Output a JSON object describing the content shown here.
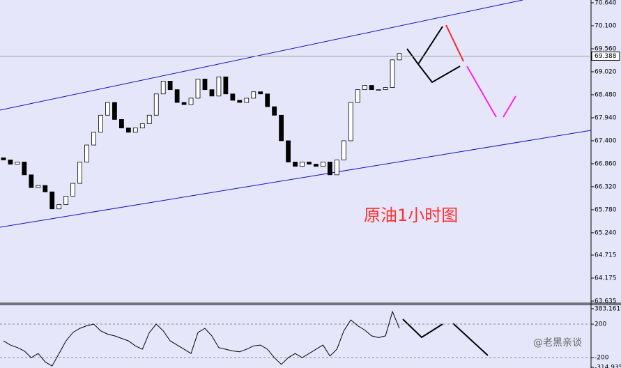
{
  "chart_data": [
    {
      "type": "candlestick",
      "annotation": "原油1小时图",
      "x": [
        null,
        null,
        null,
        null,
        null,
        null,
        null,
        null,
        null,
        null,
        null,
        null,
        null,
        null,
        null,
        null,
        null,
        null,
        null,
        null,
        null,
        null,
        null,
        null,
        null,
        null,
        null,
        null,
        null,
        null,
        null,
        null,
        null,
        null,
        null,
        null,
        null,
        null,
        null,
        null,
        null,
        null,
        null,
        null,
        null,
        null,
        null,
        null,
        null,
        null,
        null,
        null,
        null,
        null,
        null,
        null,
        null,
        null
      ],
      "open": [
        67.0,
        66.95,
        66.85,
        66.9,
        66.6,
        66.3,
        66.35,
        66.2,
        65.8,
        65.9,
        66.1,
        66.4,
        66.9,
        67.3,
        67.6,
        68.0,
        68.3,
        67.9,
        67.7,
        67.6,
        67.7,
        67.8,
        68.0,
        68.5,
        68.8,
        68.6,
        68.3,
        68.25,
        68.4,
        68.85,
        68.6,
        68.45,
        68.9,
        68.5,
        68.35,
        68.3,
        68.4,
        68.55,
        68.5,
        68.2,
        68.0,
        67.4,
        66.9,
        66.8,
        66.9,
        66.85,
        66.8,
        66.9,
        66.6,
        66.95,
        67.4,
        68.3,
        68.6,
        68.7,
        68.6,
        68.6,
        68.65,
        69.3
      ],
      "close": [
        66.95,
        66.85,
        66.9,
        66.6,
        66.3,
        66.35,
        66.2,
        65.8,
        65.9,
        66.1,
        66.4,
        66.9,
        67.3,
        67.6,
        68.0,
        68.3,
        67.9,
        67.7,
        67.6,
        67.7,
        67.8,
        68.0,
        68.5,
        68.8,
        68.6,
        68.3,
        68.25,
        68.4,
        68.85,
        68.6,
        68.45,
        68.9,
        68.5,
        68.35,
        68.3,
        68.4,
        68.55,
        68.5,
        68.2,
        68.0,
        67.4,
        66.9,
        66.8,
        66.9,
        66.85,
        66.8,
        66.9,
        66.6,
        66.95,
        67.4,
        68.3,
        68.6,
        68.7,
        68.6,
        68.6,
        68.65,
        69.3,
        69.45
      ],
      "up_color": "#ffffff",
      "down_color": "#000000",
      "last_price": 69.388,
      "ylim": [
        63.635,
        70.64
      ],
      "yticks": [
        {
          "value": 70.64,
          "label": "70.640"
        },
        {
          "value": 70.1,
          "label": "70.100"
        },
        {
          "value": 69.56,
          "label": "69.560"
        },
        {
          "value": 69.02,
          "label": "69.020"
        },
        {
          "value": 68.48,
          "label": "68.480"
        },
        {
          "value": 67.94,
          "label": "67.940"
        },
        {
          "value": 67.4,
          "label": "67.400"
        },
        {
          "value": 66.86,
          "label": "66.860"
        },
        {
          "value": 66.32,
          "label": "66.320"
        },
        {
          "value": 65.78,
          "label": "65.780"
        },
        {
          "value": 65.24,
          "label": "65.240"
        },
        64.715,
        64.175,
        63.635
      ]
    },
    {
      "type": "line",
      "watermark": "@老黑亲谈",
      "values": [
        0,
        -50,
        -80,
        -120,
        -200,
        -150,
        -250,
        -300,
        -150,
        0,
        100,
        150,
        180,
        200,
        120,
        80,
        60,
        30,
        0,
        -60,
        -100,
        100,
        200,
        120,
        0,
        -50,
        -100,
        -150,
        100,
        150,
        60,
        -80,
        -100,
        -120,
        -130,
        -100,
        -60,
        -50,
        -100,
        -200,
        -280,
        -200,
        -150,
        -200,
        -150,
        -100,
        -50,
        -180,
        -100,
        120,
        250,
        180,
        130,
        60,
        40,
        60,
        350,
        150
      ],
      "color": "#000000",
      "ylim": [
        -314.935,
        383.1619
      ],
      "yticks": [
        383.1619,
        200,
        -200,
        -314.935
      ]
    }
  ]
}
